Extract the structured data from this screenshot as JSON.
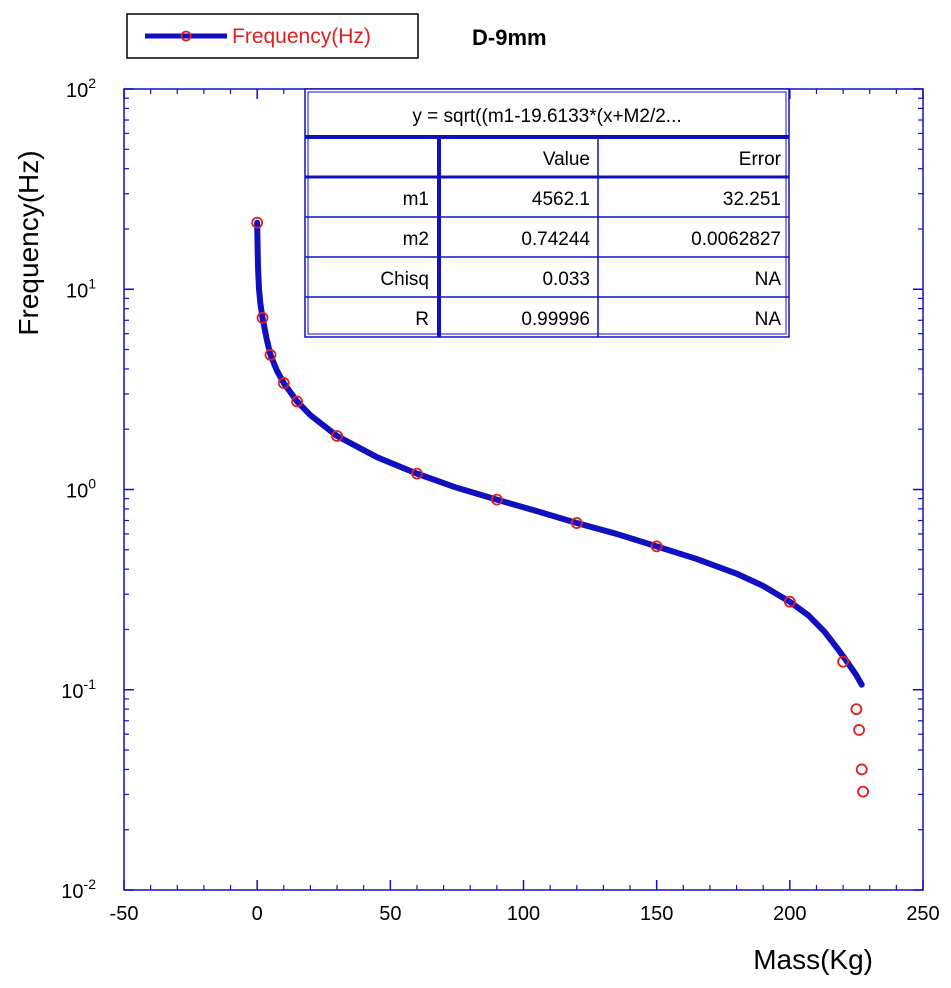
{
  "chart_data": {
    "type": "scatter",
    "title": "D-9mm",
    "xlabel": "Mass(Kg)",
    "ylabel": "Frequency(Hz)",
    "xlim": [
      -50,
      250
    ],
    "ylim": [
      0.01,
      100
    ],
    "yscale": "log",
    "x_ticks": [
      -50,
      0,
      50,
      100,
      150,
      200,
      250
    ],
    "y_ticks": [
      {
        "value": 0.01,
        "base": "10",
        "exp": "-2"
      },
      {
        "value": 0.1,
        "base": "10",
        "exp": "-1"
      },
      {
        "value": 1,
        "base": "10",
        "exp": "0"
      },
      {
        "value": 10,
        "base": "10",
        "exp": "1"
      },
      {
        "value": 100,
        "base": "10",
        "exp": "2"
      }
    ],
    "legend": {
      "position": "top-left",
      "entries": [
        "Frequency(Hz)"
      ]
    },
    "series": [
      {
        "name": "Frequency(Hz)",
        "kind": "scatter",
        "color": "#e02020",
        "points": [
          [
            0,
            21.5
          ],
          [
            2,
            7.2
          ],
          [
            5,
            4.7
          ],
          [
            10,
            3.4
          ],
          [
            15,
            2.75
          ],
          [
            30,
            1.85
          ],
          [
            60,
            1.2
          ],
          [
            90,
            0.89
          ],
          [
            120,
            0.68
          ],
          [
            150,
            0.52
          ],
          [
            200,
            0.275
          ],
          [
            220,
            0.138
          ],
          [
            225,
            0.08
          ],
          [
            226,
            0.063
          ],
          [
            227,
            0.04
          ],
          [
            227.5,
            0.031
          ]
        ]
      },
      {
        "kind": "fit-line",
        "color": "#1010c0",
        "points": [
          [
            0,
            21.5
          ],
          [
            0.3,
            13
          ],
          [
            0.7,
            10
          ],
          [
            1.2,
            8.5
          ],
          [
            2,
            7.2
          ],
          [
            3.5,
            5.7
          ],
          [
            5,
            4.7
          ],
          [
            7.5,
            3.9
          ],
          [
            10,
            3.4
          ],
          [
            15,
            2.75
          ],
          [
            20,
            2.35
          ],
          [
            30,
            1.85
          ],
          [
            45,
            1.45
          ],
          [
            60,
            1.2
          ],
          [
            75,
            1.02
          ],
          [
            90,
            0.89
          ],
          [
            105,
            0.78
          ],
          [
            120,
            0.68
          ],
          [
            135,
            0.6
          ],
          [
            150,
            0.52
          ],
          [
            165,
            0.45
          ],
          [
            180,
            0.38
          ],
          [
            190,
            0.33
          ],
          [
            200,
            0.275
          ],
          [
            207,
            0.235
          ],
          [
            213,
            0.195
          ],
          [
            218,
            0.16
          ],
          [
            222,
            0.135
          ],
          [
            225,
            0.118
          ],
          [
            227,
            0.106
          ]
        ]
      }
    ],
    "fit_table": {
      "equation": "y = sqrt((m1-19.6133*(x+M2/2...",
      "headers": [
        "",
        "Value",
        "Error"
      ],
      "rows": [
        [
          "m1",
          "4562.1",
          "32.251"
        ],
        [
          "m2",
          "0.74244",
          "0.0062827"
        ],
        [
          "Chisq",
          "0.033",
          "NA"
        ],
        [
          "R",
          "0.99996",
          "NA"
        ]
      ]
    },
    "colors": {
      "axis": "#1010c0",
      "line": "#1010c0",
      "marker": "#e02020",
      "table_border": "#1010c0"
    }
  }
}
